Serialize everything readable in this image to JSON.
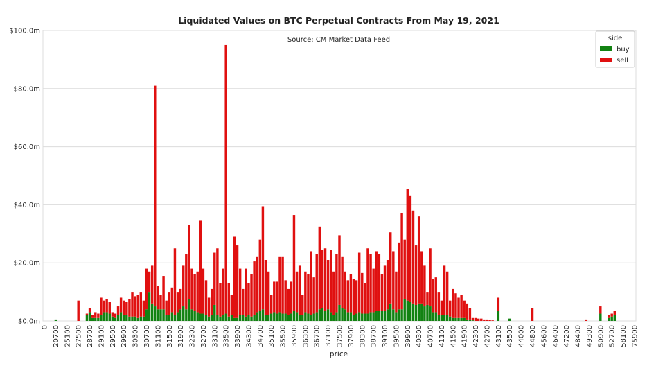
{
  "chart_data": {
    "type": "stacked-bar",
    "title": "Liquidated Values on BTC Perpetual Contracts From May 19, 2021",
    "subtitle": "Source: CM Market Data Feed",
    "x_label": "price",
    "legend_title": "side",
    "legend_position": "upper right",
    "grid": true,
    "categories": [
      "0",
      null,
      null,
      null,
      "20700",
      null,
      null,
      null,
      "25100",
      null,
      null,
      null,
      "27500",
      null,
      null,
      null,
      "28700",
      null,
      null,
      null,
      "29100",
      null,
      null,
      null,
      "29500",
      null,
      null,
      null,
      "29900",
      null,
      null,
      null,
      "30300",
      null,
      null,
      null,
      "30700",
      null,
      null,
      null,
      "31100",
      null,
      null,
      null,
      "31500",
      null,
      null,
      null,
      "31900",
      null,
      null,
      null,
      "32300",
      null,
      null,
      null,
      "32700",
      null,
      null,
      null,
      "33100",
      null,
      null,
      null,
      "33500",
      null,
      null,
      null,
      "33900",
      null,
      null,
      null,
      "34300",
      null,
      null,
      null,
      "34700",
      null,
      null,
      null,
      "35100",
      null,
      null,
      null,
      "35500",
      null,
      null,
      null,
      "35900",
      null,
      null,
      null,
      "36300",
      null,
      null,
      null,
      "36700",
      null,
      null,
      null,
      "37100",
      null,
      null,
      null,
      "37500",
      null,
      null,
      null,
      "37900",
      null,
      null,
      null,
      "38300",
      null,
      null,
      null,
      "38700",
      null,
      null,
      null,
      "39100",
      null,
      null,
      null,
      "39500",
      null,
      null,
      null,
      "39900",
      null,
      null,
      null,
      "40300",
      null,
      null,
      null,
      "40700",
      null,
      null,
      null,
      "41100",
      null,
      null,
      null,
      "41500",
      null,
      null,
      null,
      "41900",
      null,
      null,
      null,
      "42300",
      null,
      null,
      null,
      "42700",
      null,
      null,
      null,
      "43100",
      null,
      null,
      null,
      "43500",
      null,
      null,
      null,
      "44000",
      null,
      null,
      null,
      "44800",
      null,
      null,
      null,
      "45600",
      null,
      null,
      null,
      "46400",
      null,
      null,
      null,
      "47200",
      null,
      null,
      null,
      "48400",
      null,
      null,
      null,
      "49300",
      null,
      null,
      null,
      "50900",
      null,
      null,
      null,
      "52700",
      null,
      null,
      null,
      "58100",
      null,
      null,
      null,
      "75900"
    ],
    "series": [
      {
        "name": "buy",
        "color": "#128212",
        "values": [
          0,
          0,
          0,
          0,
          0.5,
          0,
          0,
          0,
          0,
          0,
          0,
          0,
          0,
          0,
          0,
          2,
          3,
          1,
          1,
          1,
          2,
          3,
          3,
          2.5,
          1.5,
          1,
          2,
          3,
          2,
          2,
          1.5,
          1.5,
          1.5,
          1,
          1.5,
          1.5,
          4,
          10,
          6,
          5,
          4,
          4,
          4,
          2,
          2,
          3,
          2,
          3,
          4,
          5,
          4,
          7.5,
          4,
          3.5,
          3,
          2.5,
          2.5,
          2,
          1.5,
          2,
          5.5,
          2,
          1.5,
          2,
          2.5,
          1.5,
          2,
          1,
          1,
          2,
          2,
          1.5,
          2,
          1.5,
          2,
          3,
          3.5,
          4,
          2,
          2,
          2.5,
          3,
          2.5,
          3,
          2.5,
          2.5,
          2,
          2.5,
          3.5,
          3,
          2,
          2,
          3,
          2.5,
          2,
          2.5,
          3,
          4,
          4.5,
          3.5,
          4,
          3,
          2,
          3,
          5.5,
          4.5,
          4,
          3,
          3,
          2,
          2.5,
          3,
          2.5,
          2.5,
          2.5,
          3,
          3,
          3.5,
          3.5,
          3.5,
          3.5,
          4,
          6,
          4,
          3,
          4,
          4,
          7.5,
          7,
          6.5,
          6,
          5.5,
          6,
          6,
          5,
          5.5,
          5,
          3,
          3,
          2,
          2,
          2,
          2,
          1.5,
          1,
          1,
          1,
          1,
          1,
          0.5,
          0.5,
          0.2,
          0,
          0,
          0,
          0,
          0,
          0,
          0,
          0,
          3.5,
          0,
          0,
          0,
          0.8,
          0,
          0,
          0,
          0,
          0,
          0,
          0,
          0,
          0,
          0,
          0,
          0,
          0,
          0,
          0,
          0,
          0,
          0,
          0,
          0,
          0,
          0,
          0,
          0,
          0,
          0,
          0,
          0,
          0,
          0,
          0,
          2.5,
          0,
          0,
          1,
          1.5,
          2,
          0,
          0,
          0,
          0,
          0,
          0,
          0
        ]
      },
      {
        "name": "sell",
        "color": "#e01010",
        "values": [
          0,
          0,
          0,
          0,
          0,
          0,
          0,
          0,
          0,
          0,
          0,
          0,
          7,
          0,
          0,
          0.5,
          1.5,
          1,
          2,
          1.5,
          6,
          4,
          4.5,
          4,
          1.5,
          1.5,
          3,
          5,
          5,
          4.5,
          6,
          8.5,
          7,
          8,
          8.5,
          5.5,
          14,
          7,
          13,
          76,
          8,
          5,
          11.5,
          5,
          8,
          8.5,
          23,
          7,
          7,
          14,
          19,
          25.5,
          14,
          12.5,
          14,
          32,
          15.5,
          12,
          6.5,
          9,
          18,
          23,
          11.5,
          16,
          92.5,
          11.5,
          7,
          28,
          25,
          16,
          9,
          16.5,
          11,
          14.5,
          18.5,
          19,
          24.5,
          35.5,
          19,
          15,
          6.5,
          10.5,
          11,
          19,
          19.5,
          11.5,
          9,
          11,
          33,
          14,
          17,
          7,
          14,
          13.5,
          22,
          12.5,
          20,
          28.5,
          20,
          21.5,
          17,
          21.5,
          15,
          20,
          24,
          17.5,
          13,
          11,
          13,
          12.5,
          11.5,
          20.5,
          14,
          10.5,
          22.5,
          20,
          15,
          20.5,
          19.5,
          12.5,
          15.5,
          17,
          24.5,
          20,
          14,
          23,
          33,
          20.5,
          38.5,
          36.5,
          32,
          20.5,
          30,
          18,
          14,
          4.5,
          20,
          11.5,
          12,
          8,
          5,
          17,
          15,
          5.5,
          10,
          8.5,
          7,
          8,
          6,
          5.5,
          4,
          0.8,
          1,
          0.8,
          0.8,
          0.5,
          0.5,
          0.3,
          0.2,
          0,
          4.5,
          0,
          0,
          0,
          0,
          0,
          0,
          0,
          0,
          0,
          0,
          0,
          4.5,
          0,
          0,
          0,
          0,
          0,
          0,
          0,
          0,
          0,
          0,
          0,
          0,
          0,
          0,
          0,
          0,
          0,
          0,
          0.5,
          0,
          0,
          0,
          0,
          2.5,
          0,
          0,
          1,
          1,
          1.5,
          0,
          0,
          0,
          0,
          0,
          0,
          0
        ]
      }
    ],
    "ylim": [
      0,
      100
    ],
    "yticks": [
      {
        "value": 0,
        "label": "$0.0m"
      },
      {
        "value": 20,
        "label": "$20.0m"
      },
      {
        "value": 40,
        "label": "$40.0m"
      },
      {
        "value": 60,
        "label": "$60.0m"
      },
      {
        "value": 80,
        "label": "$80.0m"
      },
      {
        "value": 100,
        "label": "$100.0m"
      }
    ]
  }
}
